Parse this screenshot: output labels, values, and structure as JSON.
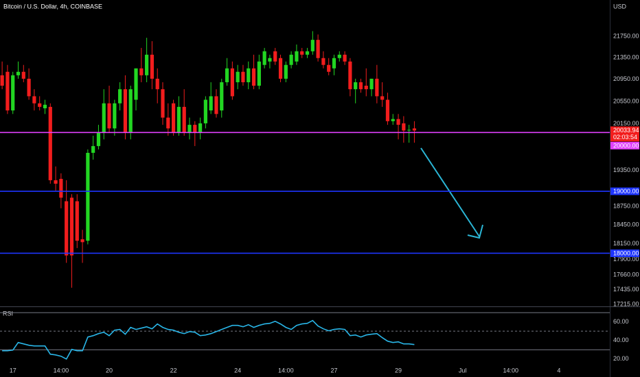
{
  "chart_data": [
    {
      "type": "candlestick",
      "title": "Bitcoin / U.S. Dollar, 4h, COINBASE",
      "currency": "USD",
      "log": true,
      "xlim": [
        -0.4,
        113.5
      ],
      "ylim": [
        17195,
        22450
      ],
      "yticks": [
        {
          "value": 21750,
          "label": "21750.00"
        },
        {
          "value": 21350,
          "label": "21350.00"
        },
        {
          "value": 20950,
          "label": "20950.00"
        },
        {
          "value": 20550,
          "label": "20550.00"
        },
        {
          "value": 20150,
          "label": "20150.00"
        },
        {
          "value": 19350,
          "label": "19350.00"
        },
        {
          "value": 18750,
          "label": "18750.00"
        },
        {
          "value": 18450,
          "label": "18450.00"
        },
        {
          "value": 18150,
          "label": "18150.00"
        },
        {
          "value": 17900,
          "label": "17900.00"
        },
        {
          "value": 17660,
          "label": "17660.00"
        },
        {
          "value": 17435,
          "label": "17435.00"
        },
        {
          "value": 17215,
          "label": "17215.00"
        }
      ],
      "up_color": "#22d622",
      "down_color": "#f21d1d",
      "open": [
        21023,
        21087,
        20388,
        21023,
        21087,
        20960,
        20642,
        20515,
        20426,
        20452,
        19184,
        19207,
        18836,
        18894,
        18836,
        18221,
        18198,
        19648,
        19764,
        20007,
        20515,
        20071,
        20515,
        20769,
        20007,
        20579,
        21150,
        21023,
        21404,
        20960,
        20769,
        20261,
        20515,
        20007,
        20452,
        20007,
        20134,
        20007,
        20160,
        20388,
        20642,
        20388,
        20896,
        21150,
        20896,
        21087,
        20896,
        21150,
        20833,
        21214,
        21277,
        21468,
        21341,
        20960,
        21214,
        21277,
        21468,
        21404,
        21468,
        21683,
        21341,
        21214,
        21150,
        21341,
        21404,
        21277,
        20769,
        20896,
        20833,
        20769,
        20960,
        20642,
        20579,
        20198,
        20236,
        20160,
        20034,
        20071
      ],
      "high": [
        21277,
        21214,
        21087,
        21277,
        21214,
        21150,
        20769,
        20642,
        20579,
        20515,
        19416,
        19300,
        19184,
        18952,
        18952,
        18372,
        19706,
        19944,
        20134,
        20769,
        20833,
        20579,
        20896,
        21023,
        20833,
        21150,
        21531,
        21722,
        21658,
        21150,
        20896,
        20515,
        20579,
        20642,
        20769,
        20261,
        20198,
        20261,
        20642,
        20896,
        20769,
        20960,
        21341,
        21277,
        21214,
        21214,
        21277,
        21404,
        21404,
        21531,
        21404,
        21531,
        21404,
        21277,
        21468,
        21595,
        21531,
        21531,
        21848,
        21785,
        21468,
        21341,
        21404,
        21468,
        21468,
        21341,
        20960,
        20960,
        21150,
        20960,
        21214,
        20896,
        20706,
        20325,
        20325,
        20287,
        20134,
        20198
      ],
      "low": [
        20769,
        20325,
        20325,
        20960,
        20896,
        20579,
        20388,
        20388,
        20325,
        19126,
        19010,
        18720,
        17850,
        17467,
        18082,
        17850,
        18140,
        19532,
        19706,
        19880,
        20007,
        19944,
        20388,
        19880,
        19880,
        20388,
        20896,
        20896,
        20769,
        20515,
        20134,
        19944,
        19944,
        19944,
        19944,
        19880,
        19764,
        19880,
        20071,
        20325,
        20261,
        20261,
        20833,
        20579,
        20769,
        20833,
        20769,
        20769,
        20769,
        21150,
        21150,
        21214,
        20896,
        20896,
        21150,
        21214,
        21341,
        21341,
        21404,
        21277,
        21150,
        21023,
        21023,
        21277,
        21214,
        20642,
        20515,
        20706,
        20642,
        20642,
        20515,
        20452,
        20134,
        20134,
        19880,
        19822,
        19822,
        19822
      ],
      "close": [
        20833,
        20388,
        21023,
        21087,
        20960,
        20642,
        20515,
        20452,
        20490,
        19184,
        19126,
        18894,
        17966,
        17966,
        18198,
        18175,
        19648,
        19764,
        20007,
        20515,
        20071,
        20515,
        20769,
        20007,
        20769,
        21150,
        21023,
        21404,
        20960,
        20769,
        20261,
        20071,
        20007,
        20452,
        20007,
        20134,
        20007,
        20160,
        20579,
        20642,
        20325,
        20896,
        21150,
        20642,
        21087,
        20896,
        21150,
        20833,
        21277,
        21468,
        21341,
        21277,
        20960,
        21214,
        21404,
        21468,
        21404,
        21468,
        21683,
        21341,
        21214,
        21087,
        21341,
        21404,
        21277,
        20769,
        20896,
        20769,
        20769,
        20960,
        20642,
        20579,
        20198,
        20236,
        20134,
        20034,
        20046,
        20033.94
      ],
      "countdown": "02:03:54",
      "levels": [
        {
          "value": 20000,
          "label": "20000.00",
          "color": "#e040fb"
        },
        {
          "value": 19000,
          "label": "19000.00",
          "color": "#1e35ff"
        },
        {
          "value": 18000,
          "label": "18000.00",
          "color": "#1e35ff"
        }
      ]
    },
    {
      "type": "line",
      "title": "RSI",
      "xlim": [
        -0.4,
        113.5
      ],
      "ylim": [
        8,
        76
      ],
      "color": "#29b6e8",
      "yticks": [
        {
          "value": 60,
          "label": "60.00"
        },
        {
          "value": 40,
          "label": "40.00"
        },
        {
          "value": 20,
          "label": "20.00"
        }
      ],
      "bands": [
        70,
        50,
        30
      ],
      "xticks": [
        {
          "value": 2,
          "label": "17"
        },
        {
          "value": 11,
          "label": "14:00"
        },
        {
          "value": 20,
          "label": "20"
        },
        {
          "value": 32,
          "label": "22"
        },
        {
          "value": 44,
          "label": "24"
        },
        {
          "value": 53,
          "label": "14:00"
        },
        {
          "value": 62,
          "label": "27"
        },
        {
          "value": 74,
          "label": "29"
        },
        {
          "value": 86,
          "label": "Jul"
        },
        {
          "value": 95,
          "label": "14:00"
        },
        {
          "value": 104,
          "label": "4"
        }
      ],
      "values": [
        28.9,
        28.9,
        29.6,
        37.8,
        36.3,
        34.8,
        34.1,
        34.1,
        34.1,
        25.2,
        24.4,
        23.0,
        20.0,
        30.4,
        28.9,
        28.9,
        43.7,
        45.2,
        47.4,
        48.9,
        45.2,
        51.1,
        51.9,
        46.7,
        54.1,
        51.9,
        53.3,
        54.8,
        52.6,
        57.8,
        54.1,
        51.9,
        51.1,
        48.9,
        47.4,
        49.6,
        48.9,
        45.2,
        45.9,
        47.4,
        49.6,
        51.9,
        54.1,
        56.3,
        56.3,
        54.8,
        57.0,
        54.1,
        56.3,
        57.8,
        58.5,
        60.7,
        57.8,
        54.1,
        51.9,
        56.3,
        57.8,
        58.5,
        61.5,
        55.6,
        52.6,
        50.4,
        51.9,
        52.6,
        51.9,
        45.2,
        45.9,
        43.7,
        45.9,
        46.7,
        47.4,
        43.0,
        39.3,
        37.8,
        38.5,
        36.3,
        36.3,
        35.6
      ]
    }
  ]
}
